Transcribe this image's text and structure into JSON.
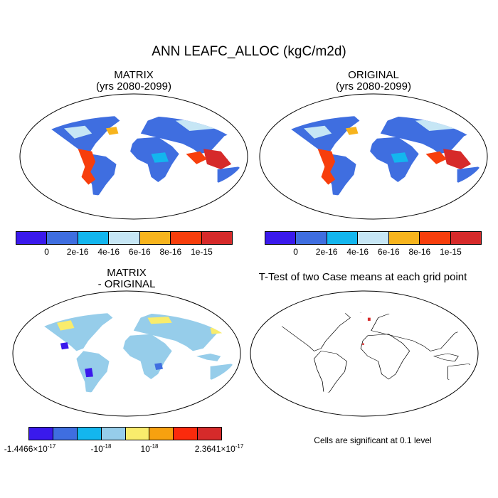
{
  "main_title": "ANN LEAFC_ALLOC (kgC/m2d)",
  "panels": {
    "matrix": {
      "title_line1": "MATRIX",
      "title_line2": "(yrs 2080-2099)"
    },
    "original": {
      "title_line1": "ORIGINAL",
      "title_line2": "(yrs 2080-2099)"
    },
    "difference": {
      "title_line1": "MATRIX",
      "title_line2": "- ORIGINAL"
    },
    "ttest": {
      "title": "T-Test of two Case means at each grid point",
      "note": "Cells are significant at 0.1 level"
    }
  },
  "colorbar_top": {
    "colors": [
      "#3a19ec",
      "#3f6ee0",
      "#13b6ee",
      "#c6e6f5",
      "#f7b41d",
      "#f73e0c",
      "#d62a2a"
    ],
    "labels": [
      "0",
      "2e-16",
      "4e-16",
      "6e-16",
      "8e-16",
      "1e-15"
    ]
  },
  "colorbar_diff": {
    "colors": [
      "#3a19ec",
      "#3f6ee0",
      "#13b6ee",
      "#96cdea",
      "#f9ec6c",
      "#f7a10f",
      "#fb2a0c",
      "#d62a2a"
    ],
    "labels": {
      "min_base": "-1.4466",
      "min_exp": "-17",
      "neg": "-10",
      "neg_exp": "-18",
      "pos": "10",
      "pos_exp": "-18",
      "max_base": "2.3641",
      "max_exp": "-17"
    },
    "times_sign": "×10"
  }
}
